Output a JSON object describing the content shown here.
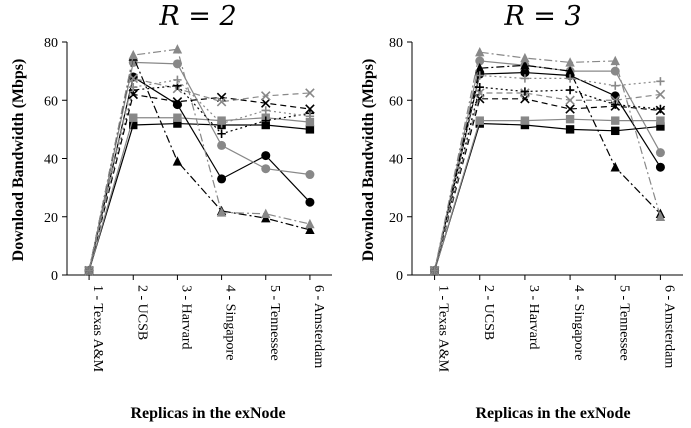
{
  "chart_data": [
    {
      "type": "line",
      "title": "R = 2",
      "xlabel": "Replicas in the exNode",
      "ylabel": "Download Bandwidth (Mbps)",
      "ylim": [
        0,
        80
      ],
      "yticks": [
        "0",
        "20",
        "40",
        "60",
        "80"
      ],
      "categories": [
        "1 - Texas A&M",
        "2 - UCSB",
        "3 - Harvard",
        "4 - Singapore",
        "5 - Tennessee",
        "6 - Amsterdam"
      ],
      "series": [
        {
          "values": [
            1.5,
            51.5,
            52,
            51.5,
            51.5,
            50
          ],
          "color": "#000000",
          "dash": "",
          "marker": "square"
        },
        {
          "values": [
            1.5,
            54,
            54,
            53,
            54,
            52.5
          ],
          "color": "#888888",
          "dash": "",
          "marker": "square"
        },
        {
          "values": [
            1.5,
            68,
            58.5,
            33,
            41,
            25
          ],
          "color": "#000000",
          "dash": "",
          "marker": "circle"
        },
        {
          "values": [
            1.5,
            73,
            72.5,
            44.5,
            36.5,
            34.5
          ],
          "color": "#888888",
          "dash": "",
          "marker": "circle"
        },
        {
          "values": [
            1.5,
            75,
            39,
            22,
            19.5,
            15.5
          ],
          "color": "#000000",
          "dash": "8 3 2 3",
          "marker": "triangle"
        },
        {
          "values": [
            1.5,
            75.5,
            77.5,
            21.5,
            21,
            17.5
          ],
          "color": "#888888",
          "dash": "8 3 2 3",
          "marker": "triangle"
        },
        {
          "values": [
            1.5,
            62,
            59.5,
            61,
            59,
            57
          ],
          "color": "#000000",
          "dash": "6 4",
          "marker": "x"
        },
        {
          "values": [
            1.5,
            67.5,
            64,
            59.5,
            61.5,
            62.5
          ],
          "color": "#888888",
          "dash": "6 4",
          "marker": "x"
        },
        {
          "values": [
            1.5,
            63.5,
            65,
            48.5,
            53,
            55.5
          ],
          "color": "#000000",
          "dash": "2 3",
          "marker": "plus"
        },
        {
          "values": [
            1.5,
            64.5,
            67,
            52,
            56.5,
            54.5
          ],
          "color": "#888888",
          "dash": "2 3",
          "marker": "plus"
        }
      ]
    },
    {
      "type": "line",
      "title": "R = 3",
      "xlabel": "Replicas in the exNode",
      "ylabel": "Download Bandwidth (Mbps)",
      "ylim": [
        0,
        80
      ],
      "yticks": [
        "0",
        "20",
        "40",
        "60",
        "80"
      ],
      "categories": [
        "1 - Texas A&M",
        "2 - UCSB",
        "3 - Harvard",
        "4 - Singapore",
        "5 - Tennessee",
        "6 - Amsterdam"
      ],
      "series": [
        {
          "values": [
            1.5,
            52,
            51.5,
            50,
            49.5,
            51
          ],
          "color": "#000000",
          "dash": "",
          "marker": "square"
        },
        {
          "values": [
            1.5,
            53,
            53,
            53.5,
            53,
            53
          ],
          "color": "#888888",
          "dash": "",
          "marker": "square"
        },
        {
          "values": [
            1.5,
            69,
            69.5,
            68.5,
            61.5,
            37
          ],
          "color": "#000000",
          "dash": "",
          "marker": "circle"
        },
        {
          "values": [
            1.5,
            73.5,
            72,
            70,
            70,
            42
          ],
          "color": "#888888",
          "dash": "",
          "marker": "circle"
        },
        {
          "values": [
            1.5,
            71,
            72,
            70,
            37,
            21
          ],
          "color": "#000000",
          "dash": "8 3 2 3",
          "marker": "triangle"
        },
        {
          "values": [
            1.5,
            76.5,
            74.5,
            73,
            73.5,
            20
          ],
          "color": "#888888",
          "dash": "8 3 2 3",
          "marker": "triangle"
        },
        {
          "values": [
            1.5,
            60.5,
            60.5,
            57,
            58,
            56.5
          ],
          "color": "#000000",
          "dash": "6 4",
          "marker": "x"
        },
        {
          "values": [
            1.5,
            62.5,
            62.5,
            60,
            60,
            62
          ],
          "color": "#888888",
          "dash": "6 4",
          "marker": "x"
        },
        {
          "values": [
            1.5,
            64.5,
            63,
            63.5,
            58.5,
            57
          ],
          "color": "#000000",
          "dash": "2 3",
          "marker": "plus"
        },
        {
          "values": [
            1.5,
            68.5,
            67.5,
            67.5,
            65,
            66.5
          ],
          "color": "#888888",
          "dash": "2 3",
          "marker": "plus"
        }
      ]
    }
  ]
}
